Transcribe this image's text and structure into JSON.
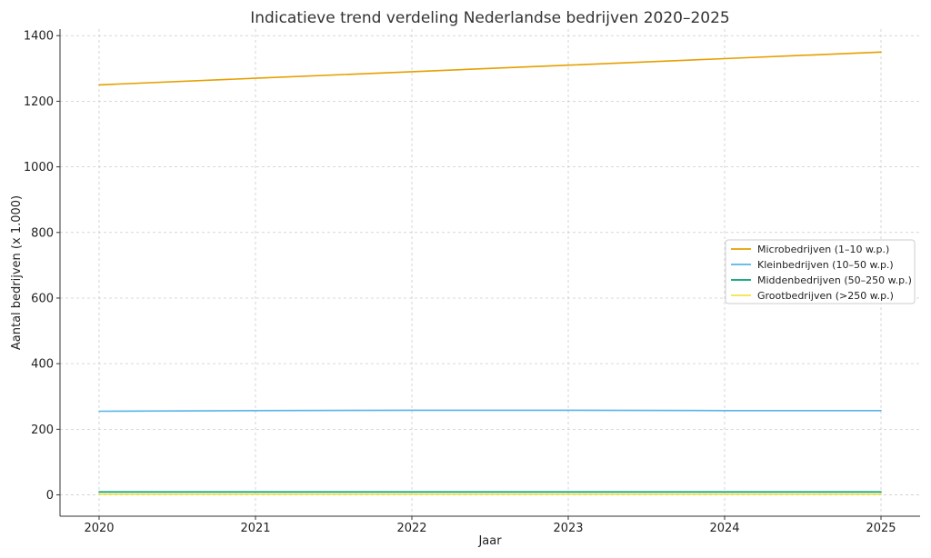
{
  "chart_data": {
    "type": "line",
    "title": "Indicatieve trend verdeling Nederlandse bedrijven 2020–2025",
    "xlabel": "Jaar",
    "ylabel": "Aantal bedrijven (x 1.000)",
    "x": [
      2020,
      2021,
      2022,
      2023,
      2024,
      2025
    ],
    "x_tick_labels": [
      "2020",
      "2021",
      "2022",
      "2023",
      "2024",
      "2025"
    ],
    "y_ticks": [
      0,
      200,
      400,
      600,
      800,
      1000,
      1200,
      1400
    ],
    "xlim": [
      2019.75,
      2025.25
    ],
    "ylim": [
      -65,
      1420
    ],
    "grid": true,
    "legend_position": "center-right",
    "series": [
      {
        "name": "Microbedrijven (1–10 w.p.)",
        "color": "#E69F00",
        "values": [
          1250,
          1270,
          1290,
          1310,
          1330,
          1350
        ]
      },
      {
        "name": "Kleinbedrijven (10–50 w.p.)",
        "color": "#56B4E9",
        "values": [
          255,
          257,
          258,
          258,
          257,
          257
        ]
      },
      {
        "name": "Middenbedrijven (50–250 w.p.)",
        "color": "#009E73",
        "values": [
          9,
          9,
          9,
          9,
          9,
          9
        ]
      },
      {
        "name": "Grootbedrijven (>250 w.p.)",
        "color": "#F0E442",
        "values": [
          2,
          2,
          2,
          2,
          2,
          2
        ]
      }
    ]
  }
}
